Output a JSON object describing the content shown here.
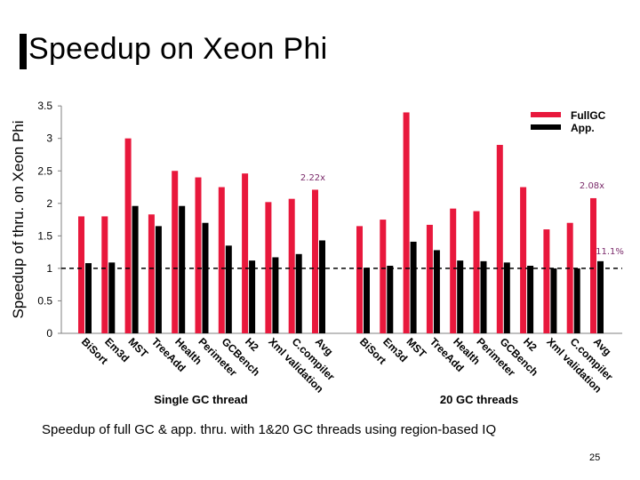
{
  "slide": {
    "title": "Speedup on Xeon Phi",
    "caption": "Speedup of full GC & app. thru. with 1&20 GC threads using region-based IQ",
    "page_number": "25"
  },
  "chart_data": {
    "type": "bar",
    "ylabel": "Speedup of thru. on Xeon Phi",
    "ylim": [
      0,
      3.5
    ],
    "yticks": [
      "0",
      "0.5",
      "1",
      "1.5",
      "2",
      "2.5",
      "3",
      "3.5"
    ],
    "baseline": 1,
    "groups": [
      {
        "label": "Single GC thread",
        "categories": [
          "BiSort",
          "Em3d",
          "MST",
          "TreeAdd",
          "Health",
          "Perimeter",
          "GCBench",
          "H2",
          "Xml validation",
          "C.compiler",
          "Avg"
        ],
        "series": [
          {
            "name": "FullGC",
            "values": [
              1.8,
              1.8,
              3.0,
              1.83,
              2.5,
              2.4,
              2.25,
              2.46,
              2.02,
              2.07,
              2.21
            ]
          },
          {
            "name": "App.",
            "values": [
              1.08,
              1.09,
              1.96,
              1.65,
              1.96,
              1.7,
              1.35,
              1.12,
              1.17,
              1.22,
              1.43
            ]
          }
        ]
      },
      {
        "label": "20 GC threads",
        "categories": [
          "BiSort",
          "Em3d",
          "MST",
          "TreeAdd",
          "Health",
          "Perimeter",
          "GCBench",
          "H2",
          "Xml validation",
          "C.compiler",
          "Avg"
        ],
        "series": [
          {
            "name": "FullGC",
            "values": [
              1.65,
              1.75,
              3.4,
              1.67,
              1.92,
              1.88,
              2.9,
              2.25,
              1.6,
              1.7,
              2.08
            ]
          },
          {
            "name": "App.",
            "values": [
              1.01,
              1.04,
              1.41,
              1.28,
              1.12,
              1.11,
              1.09,
              1.04,
              1.0,
              1.0,
              1.11
            ]
          }
        ]
      }
    ],
    "legend": {
      "position": "top-right",
      "entries": [
        "FullGC",
        "App."
      ]
    },
    "annotations": [
      "2.22x",
      "2.08x",
      "11.1%"
    ],
    "colors": {
      "FullGC": "#e8183c",
      "App.": "#000000",
      "annotation": "#7a2a6a",
      "axis": "#808080"
    }
  }
}
